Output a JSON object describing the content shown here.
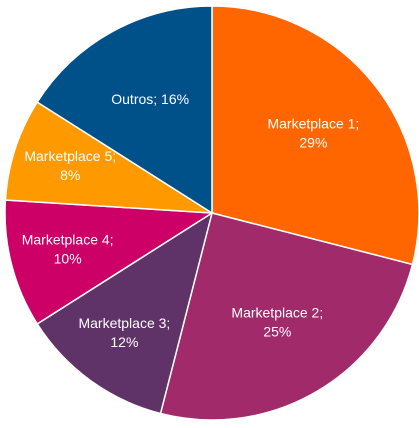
{
  "chart_data": {
    "type": "pie",
    "categories": [
      "Marketplace 1",
      "Marketplace 2",
      "Marketplace 3",
      "Marketplace 4",
      "Marketplace 5",
      "Outros"
    ],
    "values": [
      29,
      25,
      12,
      10,
      8,
      16
    ],
    "value_labels": [
      [
        "Marketplace 1;",
        "29%"
      ],
      [
        "Marketplace 2;",
        "25%"
      ],
      [
        "Marketplace 3;",
        "12%"
      ],
      [
        "Marketplace 4;",
        "10%"
      ],
      [
        "Marketplace 5;",
        "8%"
      ],
      [
        "Outros; 16%"
      ]
    ],
    "colors": [
      "#ff6600",
      "#a02a6a",
      "#603368",
      "#cc0066",
      "#ff9900",
      "#005089"
    ]
  }
}
